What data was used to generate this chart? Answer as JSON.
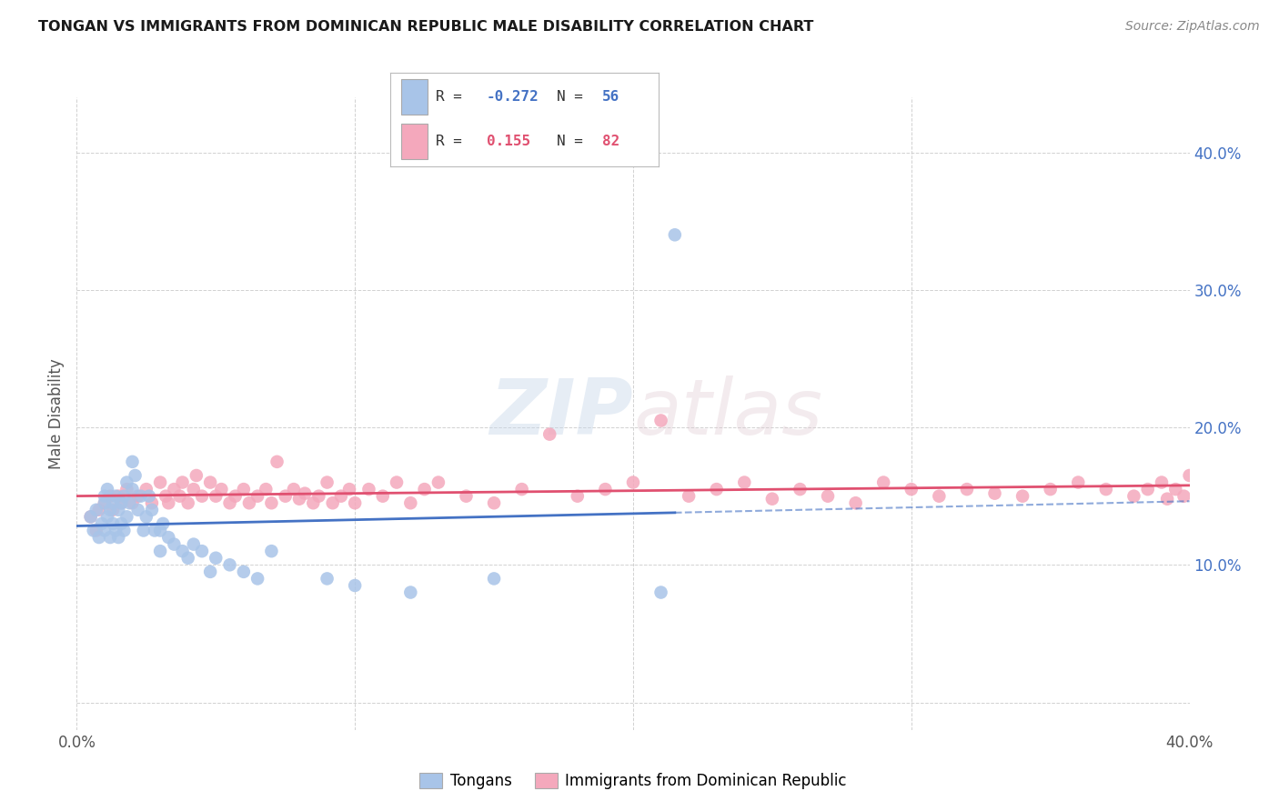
{
  "title": "TONGAN VS IMMIGRANTS FROM DOMINICAN REPUBLIC MALE DISABILITY CORRELATION CHART",
  "source": "Source: ZipAtlas.com",
  "ylabel": "Male Disability",
  "blue_R": -0.272,
  "blue_N": 56,
  "pink_R": 0.155,
  "pink_N": 82,
  "blue_color": "#a8c4e8",
  "pink_color": "#f4a8bc",
  "blue_line_color": "#4472c4",
  "pink_line_color": "#e05070",
  "legend_blue_text_color": "#4472c4",
  "legend_pink_text_color": "#e05070",
  "watermark_zip": "ZIP",
  "watermark_atlas": "atlas",
  "background_color": "#ffffff",
  "grid_color": "#cccccc",
  "xmin": 0.0,
  "xmax": 0.4,
  "ymin": -0.02,
  "ymax": 0.44,
  "blue_scatter_x": [
    0.005,
    0.006,
    0.007,
    0.008,
    0.009,
    0.01,
    0.01,
    0.01,
    0.011,
    0.011,
    0.012,
    0.012,
    0.013,
    0.013,
    0.014,
    0.014,
    0.015,
    0.015,
    0.016,
    0.016,
    0.017,
    0.017,
    0.018,
    0.018,
    0.019,
    0.02,
    0.02,
    0.021,
    0.022,
    0.023,
    0.024,
    0.025,
    0.026,
    0.027,
    0.028,
    0.03,
    0.03,
    0.031,
    0.033,
    0.035,
    0.038,
    0.04,
    0.042,
    0.045,
    0.048,
    0.05,
    0.055,
    0.06,
    0.065,
    0.07,
    0.09,
    0.1,
    0.12,
    0.15,
    0.21,
    0.215
  ],
  "blue_scatter_y": [
    0.135,
    0.125,
    0.14,
    0.12,
    0.13,
    0.15,
    0.145,
    0.125,
    0.155,
    0.135,
    0.14,
    0.12,
    0.145,
    0.13,
    0.15,
    0.125,
    0.14,
    0.12,
    0.145,
    0.13,
    0.15,
    0.125,
    0.16,
    0.135,
    0.145,
    0.175,
    0.155,
    0.165,
    0.14,
    0.15,
    0.125,
    0.135,
    0.15,
    0.14,
    0.125,
    0.125,
    0.11,
    0.13,
    0.12,
    0.115,
    0.11,
    0.105,
    0.115,
    0.11,
    0.095,
    0.105,
    0.1,
    0.095,
    0.09,
    0.11,
    0.09,
    0.085,
    0.08,
    0.09,
    0.08,
    0.34
  ],
  "pink_scatter_x": [
    0.005,
    0.007,
    0.008,
    0.01,
    0.012,
    0.013,
    0.015,
    0.016,
    0.018,
    0.02,
    0.022,
    0.025,
    0.027,
    0.03,
    0.032,
    0.033,
    0.035,
    0.037,
    0.038,
    0.04,
    0.042,
    0.043,
    0.045,
    0.048,
    0.05,
    0.052,
    0.055,
    0.057,
    0.06,
    0.062,
    0.065,
    0.068,
    0.07,
    0.072,
    0.075,
    0.078,
    0.08,
    0.082,
    0.085,
    0.087,
    0.09,
    0.092,
    0.095,
    0.098,
    0.1,
    0.105,
    0.11,
    0.115,
    0.12,
    0.125,
    0.13,
    0.14,
    0.15,
    0.16,
    0.17,
    0.18,
    0.19,
    0.2,
    0.21,
    0.22,
    0.23,
    0.24,
    0.25,
    0.26,
    0.27,
    0.28,
    0.29,
    0.3,
    0.31,
    0.32,
    0.33,
    0.34,
    0.35,
    0.36,
    0.37,
    0.38,
    0.385,
    0.39,
    0.392,
    0.395,
    0.398,
    0.4
  ],
  "pink_scatter_y": [
    0.135,
    0.125,
    0.14,
    0.145,
    0.15,
    0.14,
    0.15,
    0.145,
    0.155,
    0.145,
    0.15,
    0.155,
    0.145,
    0.16,
    0.15,
    0.145,
    0.155,
    0.15,
    0.16,
    0.145,
    0.155,
    0.165,
    0.15,
    0.16,
    0.15,
    0.155,
    0.145,
    0.15,
    0.155,
    0.145,
    0.15,
    0.155,
    0.145,
    0.175,
    0.15,
    0.155,
    0.148,
    0.152,
    0.145,
    0.15,
    0.16,
    0.145,
    0.15,
    0.155,
    0.145,
    0.155,
    0.15,
    0.16,
    0.145,
    0.155,
    0.16,
    0.15,
    0.145,
    0.155,
    0.195,
    0.15,
    0.155,
    0.16,
    0.205,
    0.15,
    0.155,
    0.16,
    0.148,
    0.155,
    0.15,
    0.145,
    0.16,
    0.155,
    0.15,
    0.155,
    0.152,
    0.15,
    0.155,
    0.16,
    0.155,
    0.15,
    0.155,
    0.16,
    0.148,
    0.155,
    0.15,
    0.165
  ]
}
